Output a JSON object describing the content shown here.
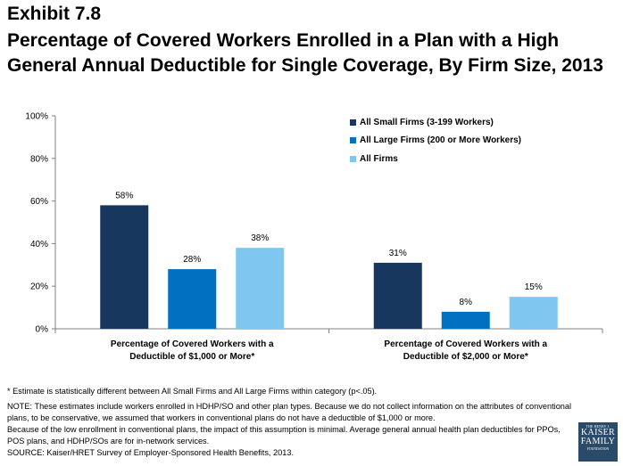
{
  "header": {
    "exhibit": "Exhibit 7.8",
    "title": "Percentage of Covered Workers Enrolled in a Plan with a High General Annual Deductible for Single Coverage, By Firm Size, 2013"
  },
  "chart_data": {
    "type": "bar",
    "ylim": [
      0,
      100
    ],
    "yticks": [
      "0%",
      "20%",
      "40%",
      "60%",
      "80%",
      "100%"
    ],
    "categories": [
      [
        "Percentage of Covered Workers with a",
        "Deductible of  $1,000 or More*"
      ],
      [
        "Percentage of Covered Workers with a",
        "Deductible of  $2,000 or More*"
      ]
    ],
    "series": [
      {
        "name": "All Small Firms (3-199 Workers)",
        "color": "#17375e",
        "values": [
          58,
          31
        ],
        "labels": [
          "58%",
          "31%"
        ]
      },
      {
        "name": "All Large Firms (200 or More Workers)",
        "color": "#0070c0",
        "values": [
          28,
          8
        ],
        "labels": [
          "28%",
          "8%"
        ]
      },
      {
        "name": "All Firms",
        "color": "#7fc7ef",
        "values": [
          38,
          15
        ],
        "labels": [
          "38%",
          "15%"
        ]
      }
    ],
    "legend_position": "top-right"
  },
  "notes": {
    "asterisk": "* Estimate is statistically different between All Small Firms and All Large Firms within category (p<.05).",
    "note1": "NOTE: These estimates include workers enrolled in HDHP/SO and other plan types.  Because we do not collect information on the attributes of conventional plans, to be conservative, we assumed that workers in conventional plans do not have a deductible of $1,000 or more.",
    "note2": "Because of the low enrollment in conventional plans, the impact of this assumption is minimal.  Average general annual health plan deductibles for PPOs, POS plans, and HDHP/SOs are for in-network services.",
    "source": "SOURCE: Kaiser/HRET Survey of Employer-Sponsored Health Benefits, 2013."
  },
  "logo": {
    "line1": "THE HENRY J.",
    "line2": "KAISER",
    "line3": "FAMILY",
    "line4": "FOUNDATION"
  }
}
